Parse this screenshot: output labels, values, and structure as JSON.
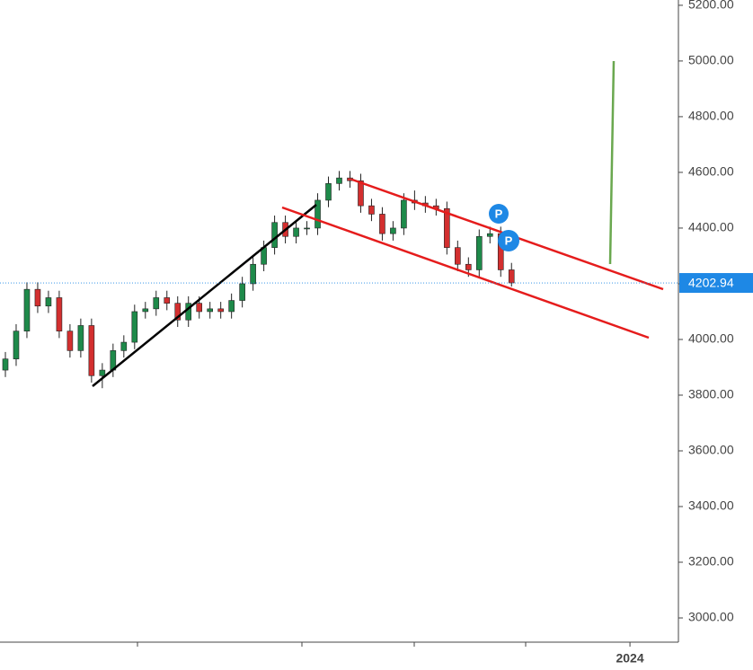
{
  "chart_data": {
    "type": "candlestick",
    "categories": [
      null,
      null,
      null,
      null,
      null,
      null,
      null,
      null,
      null,
      null,
      null,
      null,
      null,
      null,
      null,
      null,
      null,
      null,
      null,
      null,
      null,
      null,
      null,
      null,
      null,
      null,
      null,
      null,
      null,
      null,
      null,
      null,
      null,
      null,
      null,
      null,
      null,
      null,
      null,
      null,
      null,
      null,
      null,
      null,
      null,
      null,
      null,
      null,
      null,
      null,
      null,
      null,
      null,
      null,
      null,
      null,
      null,
      null,
      "2024",
      null,
      null,
      null,
      null
    ],
    "open": [
      3890,
      3930,
      4030,
      4180,
      4120,
      4150,
      4030,
      3960,
      4050,
      3870,
      3890,
      3960,
      3990,
      4100,
      4110,
      4150,
      4130,
      4070,
      4130,
      4100,
      4110,
      4100,
      4140,
      4200,
      4270,
      4330,
      4420,
      4370,
      4400,
      4400,
      4500,
      4560,
      4580,
      4570,
      4480,
      4450,
      4380,
      4400,
      4500,
      4490,
      4480,
      4470,
      4330,
      4270,
      4250,
      4370,
      4380,
      4250,
      null,
      null,
      null,
      null,
      null,
      null,
      null,
      null,
      null,
      null,
      null,
      null,
      null,
      null,
      null
    ],
    "high": [
      3955,
      4055,
      4205,
      4205,
      4175,
      4175,
      4055,
      4075,
      4075,
      3915,
      3985,
      4015,
      4125,
      4135,
      4175,
      4175,
      4155,
      4155,
      4155,
      4135,
      4135,
      4165,
      4225,
      4295,
      4355,
      4445,
      4445,
      4425,
      4425,
      4525,
      4585,
      4605,
      4605,
      4595,
      4505,
      4475,
      4425,
      4525,
      4535,
      4515,
      4505,
      4495,
      4355,
      4295,
      4395,
      4405,
      4405,
      4275,
      null,
      null,
      null,
      null,
      null,
      null,
      null,
      null,
      null,
      null,
      null,
      null,
      null,
      null,
      null
    ],
    "low": [
      3865,
      3905,
      4005,
      4095,
      4095,
      4005,
      3935,
      3935,
      3845,
      3825,
      3865,
      3935,
      3965,
      4075,
      4085,
      4105,
      4045,
      4045,
      4075,
      4075,
      4075,
      4075,
      4115,
      4175,
      4245,
      4305,
      4345,
      4345,
      4375,
      4375,
      4475,
      4535,
      4545,
      4455,
      4425,
      4355,
      4355,
      4375,
      4465,
      4455,
      4445,
      4305,
      4245,
      4225,
      4225,
      4345,
      4225,
      4190,
      null,
      null,
      null,
      null,
      null,
      null,
      null,
      null,
      null,
      null,
      null,
      null,
      null,
      null,
      null
    ],
    "close": [
      3930,
      4030,
      4180,
      4120,
      4150,
      4030,
      3960,
      4050,
      3870,
      3890,
      3960,
      3990,
      4100,
      4110,
      4150,
      4130,
      4070,
      4130,
      4100,
      4110,
      4100,
      4140,
      4200,
      4270,
      4330,
      4420,
      4370,
      4400,
      4400,
      4500,
      4560,
      4580,
      4570,
      4480,
      4450,
      4380,
      4400,
      4500,
      4490,
      4480,
      4470,
      4330,
      4270,
      4250,
      4370,
      4380,
      4250,
      4203,
      null,
      null,
      null,
      null,
      null,
      null,
      null,
      null,
      null,
      null,
      null,
      null,
      null,
      null,
      null
    ],
    "up_color": "#1e8a4a",
    "down_color": "#d32f2f",
    "ylim": [
      2913,
      5219
    ],
    "yticks": [
      {
        "value": 3000,
        "label": "3000.00"
      },
      {
        "value": 3200,
        "label": "3200.00"
      },
      {
        "value": 3400,
        "label": "3400.00"
      },
      {
        "value": 3600,
        "label": "3600.00"
      },
      {
        "value": 3800,
        "label": "3800.00"
      },
      {
        "value": 4000,
        "label": "4000.00"
      },
      {
        "value": 4200,
        "label": "4200.00"
      },
      {
        "value": 4400,
        "label": "4400.00"
      },
      {
        "value": 4600,
        "label": "4600.00"
      },
      {
        "value": 4800,
        "label": "4800.00"
      },
      {
        "value": 5000,
        "label": "5000.00"
      },
      {
        "value": 5200,
        "label": "5200.00"
      }
    ],
    "last_price": 4202.94,
    "markers": [
      {
        "label": "P"
      },
      {
        "label": "P"
      }
    ]
  }
}
